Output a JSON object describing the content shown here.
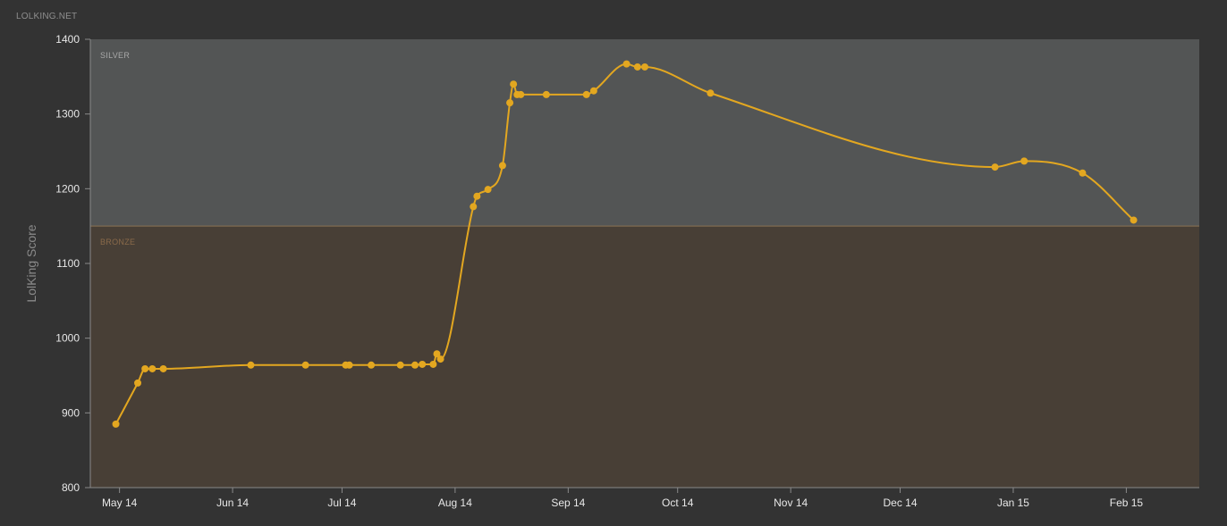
{
  "brand": "LOLKING.NET",
  "colors": {
    "background": "#333333",
    "silver_band": "#535555",
    "bronze_band": "#483f36",
    "line": "#e3a720",
    "bronze_label": "#8a6a4a",
    "silver_label": "#a9a9a9"
  },
  "chart_data": {
    "type": "line",
    "ylabel": "LolKing Score",
    "ylim": [
      800,
      1400
    ],
    "yticks": [
      800,
      900,
      1000,
      1100,
      1200,
      1300,
      1400
    ],
    "xlim": [
      "2014-04-23",
      "2015-02-21"
    ],
    "xticks": [
      {
        "date": "2014-05-01",
        "label": "May 14"
      },
      {
        "date": "2014-06-01",
        "label": "Jun 14"
      },
      {
        "date": "2014-07-01",
        "label": "Jul 14"
      },
      {
        "date": "2014-08-01",
        "label": "Aug 14"
      },
      {
        "date": "2014-09-01",
        "label": "Sep 14"
      },
      {
        "date": "2014-10-01",
        "label": "Oct 14"
      },
      {
        "date": "2014-11-01",
        "label": "Nov 14"
      },
      {
        "date": "2014-12-01",
        "label": "Dec 14"
      },
      {
        "date": "2015-01-01",
        "label": "Jan 15"
      },
      {
        "date": "2015-02-01",
        "label": "Feb 15"
      }
    ],
    "bands": [
      {
        "label": "SILVER",
        "from": 1150,
        "to": 1400
      },
      {
        "label": "BRONZE",
        "from": 800,
        "to": 1150
      }
    ],
    "series": [
      {
        "points": [
          {
            "x": "2014-04-30",
            "y": 885
          },
          {
            "x": "2014-05-06",
            "y": 940
          },
          {
            "x": "2014-05-08",
            "y": 959
          },
          {
            "x": "2014-05-10",
            "y": 959
          },
          {
            "x": "2014-05-13",
            "y": 959
          },
          {
            "x": "2014-06-06",
            "y": 964
          },
          {
            "x": "2014-06-21",
            "y": 964
          },
          {
            "x": "2014-07-02",
            "y": 964
          },
          {
            "x": "2014-07-03",
            "y": 964
          },
          {
            "x": "2014-07-09",
            "y": 964
          },
          {
            "x": "2014-07-17",
            "y": 964
          },
          {
            "x": "2014-07-21",
            "y": 964
          },
          {
            "x": "2014-07-23",
            "y": 965
          },
          {
            "x": "2014-07-26",
            "y": 965
          },
          {
            "x": "2014-07-27",
            "y": 979
          },
          {
            "x": "2014-07-28",
            "y": 972
          },
          {
            "x": "2014-08-06",
            "y": 1176
          },
          {
            "x": "2014-08-07",
            "y": 1190
          },
          {
            "x": "2014-08-10",
            "y": 1199
          },
          {
            "x": "2014-08-14",
            "y": 1231
          },
          {
            "x": "2014-08-16",
            "y": 1315
          },
          {
            "x": "2014-08-17",
            "y": 1340
          },
          {
            "x": "2014-08-18",
            "y": 1326
          },
          {
            "x": "2014-08-19",
            "y": 1326
          },
          {
            "x": "2014-08-26",
            "y": 1326
          },
          {
            "x": "2014-09-06",
            "y": 1326
          },
          {
            "x": "2014-09-08",
            "y": 1331
          },
          {
            "x": "2014-09-17",
            "y": 1367
          },
          {
            "x": "2014-09-20",
            "y": 1363
          },
          {
            "x": "2014-09-22",
            "y": 1363
          },
          {
            "x": "2014-10-10",
            "y": 1328
          },
          {
            "x": "2014-12-27",
            "y": 1229
          },
          {
            "x": "2015-01-04",
            "y": 1237
          },
          {
            "x": "2015-01-20",
            "y": 1221
          },
          {
            "x": "2015-02-03",
            "y": 1158
          }
        ]
      }
    ]
  }
}
